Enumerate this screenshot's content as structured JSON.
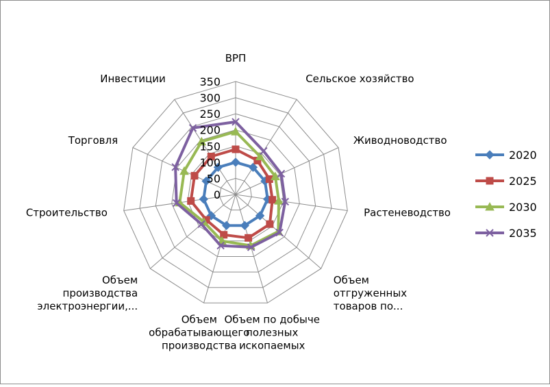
{
  "chart_data": {
    "type": "radar",
    "title": "",
    "categories": [
      "ВРП",
      "Сельское хозяйство",
      "Живодноводство",
      "Растеневодство",
      "Объем отгруженных товаров по...",
      "Объем по добыче полезных ископаемых",
      "Объем обрабатывающего производства",
      "Объем производства электроэнергии,...",
      "Строительство",
      "Торговля",
      "Инвестиции"
    ],
    "category_label_lines": [
      [
        "ВРП"
      ],
      [
        "Сельское хозяйство"
      ],
      [
        "Живодноводство"
      ],
      [
        "Растеневодство"
      ],
      [
        "Объем",
        "отгруженных",
        "товаров по..."
      ],
      [
        "Объем по добыче",
        "полезных",
        "ископаемых"
      ],
      [
        "Объем",
        "обрабатывающего",
        "производства"
      ],
      [
        "Объем",
        "производства",
        "электроэнергии,..."
      ],
      [
        "Строительство"
      ],
      [
        "Торговля"
      ],
      [
        "Инвестиции"
      ]
    ],
    "r_ticks": [
      0,
      50,
      100,
      150,
      200,
      250,
      300,
      350
    ],
    "r_range": [
      0,
      350
    ],
    "grid": true,
    "legend_position": "right",
    "series": [
      {
        "name": "2020",
        "color": "#4a7ebb",
        "marker": "diamond",
        "values": [
          100,
          100,
          100,
          100,
          100,
          100,
          100,
          100,
          100,
          100,
          100
        ]
      },
      {
        "name": "2025",
        "color": "#be4b48",
        "marker": "square",
        "values": [
          140,
          125,
          115,
          115,
          140,
          140,
          130,
          120,
          140,
          140,
          140
        ]
      },
      {
        "name": "2030",
        "color": "#98b954",
        "marker": "triangle",
        "values": [
          195,
          140,
          135,
          135,
          175,
          165,
          150,
          130,
          175,
          175,
          195
        ]
      },
      {
        "name": "2035",
        "color": "#7d60a0",
        "marker": "x",
        "values": [
          225,
          160,
          155,
          155,
          180,
          170,
          165,
          140,
          185,
          205,
          245
        ]
      }
    ]
  }
}
